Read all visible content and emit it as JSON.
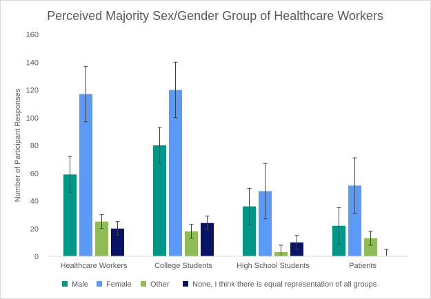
{
  "chart_data": {
    "type": "bar",
    "title": "Perceived Majority Sex/Gender Group of Healthcare Workers",
    "xlabel": "",
    "ylabel": "Number  of  Participant Responses",
    "ylim": [
      0,
      160
    ],
    "yticks": [
      0,
      20,
      40,
      60,
      80,
      100,
      120,
      140,
      160
    ],
    "grid": false,
    "legend_position": "bottom",
    "categories": [
      "Healthcare Workers",
      "College Students",
      "High School Students",
      "Patients"
    ],
    "series": [
      {
        "name": "Male",
        "color": "#009688",
        "values": [
          59,
          80,
          36,
          22
        ],
        "error": [
          13,
          13,
          13,
          13
        ]
      },
      {
        "name": "Female",
        "color": "#5b9bf7",
        "values": [
          117,
          120,
          47,
          51
        ],
        "error": [
          20,
          20,
          20,
          20
        ]
      },
      {
        "name": "Other",
        "color": "#8fbc57",
        "values": [
          25,
          18,
          3,
          13
        ],
        "error": [
          5,
          5,
          5,
          5
        ]
      },
      {
        "name": "None, I think there is equal representation of all groups",
        "color": "#0a1466",
        "values": [
          20,
          24,
          10,
          0
        ],
        "error": [
          5,
          5,
          5,
          5
        ]
      }
    ]
  }
}
